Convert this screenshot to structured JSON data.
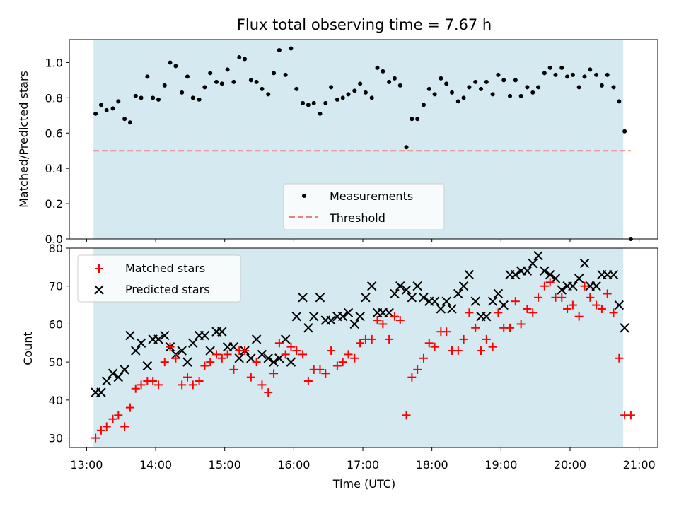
{
  "chart_data": [
    {
      "type": "scatter",
      "title": "Flux total observing time = 7.67 h",
      "xlabel": "",
      "ylabel": "Matched/Predicted stars",
      "ylim": [
        0.0,
        1.13
      ],
      "yticks": [
        "0.0",
        "0.2",
        "0.4",
        "0.6",
        "0.8",
        "1.0"
      ],
      "xlim_hours": [
        12.75,
        21.27
      ],
      "shaded_span_hours": [
        13.1,
        20.77
      ],
      "legend_position": "lower center",
      "colors": {
        "measurements": "#000000",
        "threshold": "#f08080",
        "shade": "#d4eaf0"
      },
      "threshold": {
        "name": "Threshold",
        "value": 0.5
      },
      "series": [
        {
          "name": "Measurements",
          "x_hours": [
            13.13,
            13.21,
            13.29,
            13.38,
            13.46,
            13.55,
            13.63,
            13.71,
            13.79,
            13.88,
            13.96,
            14.04,
            14.13,
            14.21,
            14.29,
            14.38,
            14.46,
            14.54,
            14.63,
            14.71,
            14.79,
            14.88,
            14.96,
            15.04,
            15.13,
            15.21,
            15.29,
            15.38,
            15.46,
            15.54,
            15.63,
            15.71,
            15.79,
            15.88,
            15.96,
            16.04,
            16.13,
            16.21,
            16.29,
            16.38,
            16.46,
            16.54,
            16.63,
            16.71,
            16.79,
            16.88,
            16.96,
            17.04,
            17.13,
            17.21,
            17.29,
            17.38,
            17.46,
            17.54,
            17.63,
            17.71,
            17.79,
            17.88,
            17.96,
            18.04,
            18.13,
            18.21,
            18.29,
            18.38,
            18.46,
            18.54,
            18.63,
            18.71,
            18.79,
            18.88,
            18.96,
            19.04,
            19.13,
            19.21,
            19.29,
            19.38,
            19.46,
            19.54,
            19.63,
            19.71,
            19.79,
            19.88,
            19.96,
            20.04,
            20.13,
            20.21,
            20.29,
            20.38,
            20.46,
            20.54,
            20.63,
            20.71,
            20.79,
            20.88
          ],
          "y": [
            0.71,
            0.76,
            0.73,
            0.74,
            0.78,
            0.68,
            0.66,
            0.81,
            0.8,
            0.92,
            0.8,
            0.79,
            0.87,
            1.0,
            0.98,
            0.83,
            0.92,
            0.8,
            0.79,
            0.86,
            0.94,
            0.89,
            0.88,
            0.96,
            0.89,
            1.03,
            1.02,
            0.9,
            0.89,
            0.85,
            0.82,
            0.94,
            1.07,
            0.93,
            1.08,
            0.85,
            0.77,
            0.76,
            0.77,
            0.71,
            0.77,
            0.86,
            0.79,
            0.8,
            0.82,
            0.84,
            0.88,
            0.83,
            0.8,
            0.97,
            0.95,
            0.89,
            0.91,
            0.87,
            0.52,
            0.68,
            0.68,
            0.76,
            0.85,
            0.82,
            0.91,
            0.88,
            0.83,
            0.78,
            0.8,
            0.86,
            0.89,
            0.85,
            0.89,
            0.82,
            0.93,
            0.9,
            0.81,
            0.9,
            0.81,
            0.86,
            0.83,
            0.86,
            0.94,
            0.97,
            0.93,
            0.97,
            0.92,
            0.93,
            0.86,
            0.92,
            0.96,
            0.93,
            0.87,
            0.93,
            0.86,
            0.78,
            0.61,
            0.0
          ]
        }
      ]
    },
    {
      "type": "scatter",
      "title": "",
      "xlabel": "Time (UTC)",
      "ylabel": "Count",
      "ylim": [
        27.5,
        80
      ],
      "yticks": [
        "30",
        "40",
        "50",
        "60",
        "70",
        "80"
      ],
      "xticks": [
        "13:00",
        "14:00",
        "15:00",
        "16:00",
        "17:00",
        "18:00",
        "19:00",
        "20:00",
        "21:00"
      ],
      "xlim_hours": [
        12.75,
        21.27
      ],
      "shaded_span_hours": [
        13.1,
        20.77
      ],
      "legend_position": "upper left",
      "colors": {
        "matched": "#ff0000",
        "predicted": "#000000",
        "shade": "#d4eaf0"
      },
      "series": [
        {
          "name": "Matched stars",
          "marker": "+",
          "x_hours": [
            13.13,
            13.21,
            13.29,
            13.38,
            13.46,
            13.55,
            13.63,
            13.71,
            13.79,
            13.88,
            13.96,
            14.04,
            14.13,
            14.21,
            14.29,
            14.38,
            14.46,
            14.54,
            14.63,
            14.71,
            14.79,
            14.88,
            14.96,
            15.04,
            15.13,
            15.21,
            15.29,
            15.38,
            15.46,
            15.54,
            15.63,
            15.71,
            15.79,
            15.88,
            15.96,
            16.04,
            16.13,
            16.21,
            16.29,
            16.38,
            16.46,
            16.54,
            16.63,
            16.71,
            16.79,
            16.88,
            16.96,
            17.04,
            17.13,
            17.21,
            17.29,
            17.38,
            17.46,
            17.54,
            17.63,
            17.71,
            17.79,
            17.88,
            17.96,
            18.04,
            18.13,
            18.21,
            18.29,
            18.38,
            18.46,
            18.54,
            18.63,
            18.71,
            18.79,
            18.88,
            18.96,
            19.04,
            19.13,
            19.21,
            19.29,
            19.38,
            19.46,
            19.54,
            19.63,
            19.71,
            19.79,
            19.88,
            19.96,
            20.04,
            20.13,
            20.21,
            20.29,
            20.38,
            20.46,
            20.54,
            20.63,
            20.71,
            20.79,
            20.88
          ],
          "y": [
            30,
            32,
            33,
            35,
            36,
            33,
            38,
            43,
            44,
            45,
            45,
            44,
            50,
            54,
            51,
            44,
            46,
            44,
            45,
            49,
            50,
            52,
            51,
            52,
            48,
            53,
            53,
            46,
            50,
            44,
            42,
            47,
            55,
            52,
            54,
            53,
            52,
            45,
            48,
            48,
            47,
            53,
            49,
            50,
            52,
            51,
            55,
            56,
            56,
            61,
            60,
            56,
            62,
            61,
            36,
            46,
            48,
            51,
            55,
            54,
            58,
            58,
            53,
            53,
            56,
            63,
            59,
            53,
            56,
            54,
            63,
            59,
            59,
            66,
            60,
            64,
            63,
            67,
            70,
            71,
            67,
            67,
            64,
            65,
            62,
            70,
            67,
            65,
            64,
            68,
            63,
            51,
            36,
            36
          ]
        },
        {
          "name": "Predicted stars",
          "marker": "x",
          "x_hours": [
            13.13,
            13.21,
            13.29,
            13.38,
            13.46,
            13.55,
            13.63,
            13.71,
            13.79,
            13.88,
            13.96,
            14.04,
            14.13,
            14.21,
            14.29,
            14.38,
            14.46,
            14.54,
            14.63,
            14.71,
            14.79,
            14.88,
            14.96,
            15.04,
            15.13,
            15.21,
            15.29,
            15.38,
            15.46,
            15.54,
            15.63,
            15.71,
            15.79,
            15.88,
            15.96,
            16.04,
            16.13,
            16.21,
            16.29,
            16.38,
            16.46,
            16.54,
            16.63,
            16.71,
            16.79,
            16.88,
            16.96,
            17.04,
            17.13,
            17.21,
            17.29,
            17.38,
            17.46,
            17.54,
            17.63,
            17.71,
            17.79,
            17.88,
            17.96,
            18.04,
            18.13,
            18.21,
            18.29,
            18.38,
            18.46,
            18.54,
            18.63,
            18.71,
            18.79,
            18.88,
            18.96,
            19.04,
            19.13,
            19.21,
            19.29,
            19.38,
            19.46,
            19.54,
            19.63,
            19.71,
            19.79,
            19.88,
            19.96,
            20.04,
            20.13,
            20.21,
            20.29,
            20.38,
            20.46,
            20.54,
            20.63,
            20.71,
            20.79
          ],
          "y": [
            42,
            42,
            45,
            47,
            46,
            48,
            57,
            53,
            55,
            49,
            56,
            56,
            57,
            54,
            52,
            53,
            50,
            55,
            57,
            57,
            53,
            58,
            58,
            54,
            54,
            51,
            53,
            51,
            56,
            52,
            51,
            50,
            51,
            56,
            50,
            62,
            67,
            59,
            62,
            67,
            61,
            61,
            62,
            62,
            63,
            60,
            62,
            67,
            70,
            63,
            63,
            63,
            68,
            70,
            69,
            67,
            70,
            67,
            66,
            66,
            64,
            66,
            64,
            68,
            70,
            73,
            66,
            62,
            62,
            66,
            68,
            65,
            73,
            73,
            74,
            74,
            76,
            78,
            74,
            73,
            72,
            69,
            70,
            70,
            72,
            76,
            70,
            70,
            73,
            73,
            73,
            65,
            59
          ]
        }
      ]
    }
  ]
}
